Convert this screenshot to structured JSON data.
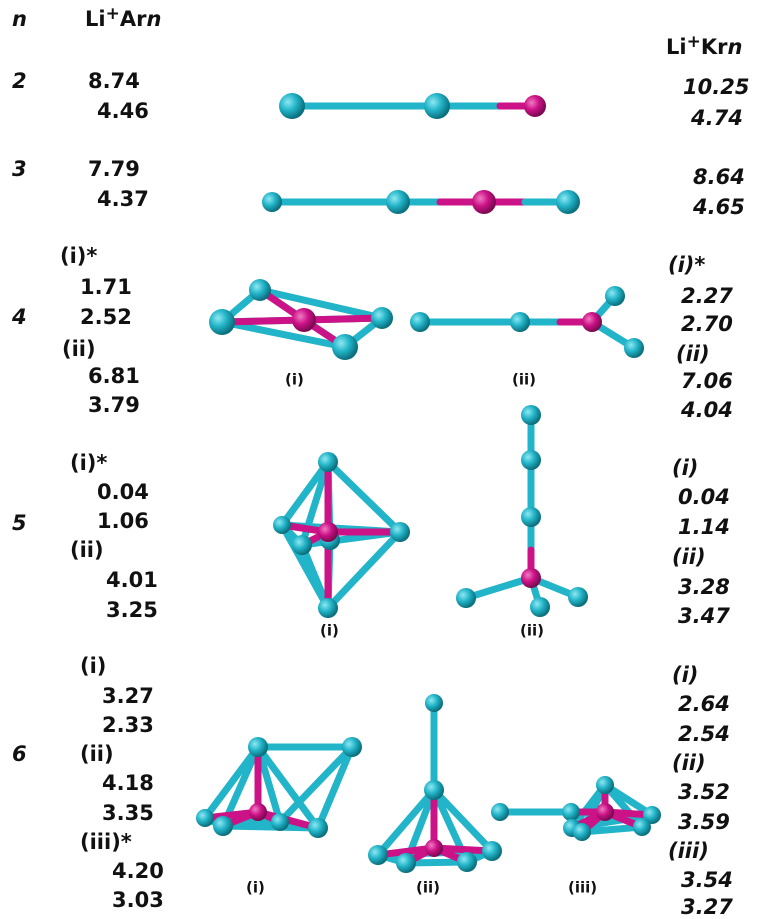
{
  "header": {
    "n": "n",
    "ar": {
      "base": "Li",
      "charge": "+",
      "element": "Ar",
      "n": "n"
    },
    "kr": {
      "base": "Li",
      "charge": "+",
      "element": "Kr",
      "n": "n"
    }
  },
  "rows": [
    {
      "n": "2",
      "ar": [
        {
          "values": [
            "8.74",
            "4.46"
          ]
        }
      ],
      "kr": [
        {
          "values": [
            "10.25",
            "4.74"
          ]
        }
      ],
      "structures": []
    },
    {
      "n": "3",
      "ar": [
        {
          "values": [
            "7.79",
            "4.37"
          ]
        }
      ],
      "kr": [
        {
          "values": [
            "8.64",
            "4.65"
          ]
        }
      ],
      "structures": []
    },
    {
      "n": "4",
      "ar": [
        {
          "label": "(i)*",
          "values": [
            "1.71",
            "2.52"
          ]
        },
        {
          "label": "(ii)",
          "values": [
            "6.81",
            "3.79"
          ]
        }
      ],
      "kr": [
        {
          "label": "(i)*",
          "values": [
            "2.27",
            "2.70"
          ]
        },
        {
          "label": "(ii)",
          "values": [
            "7.06",
            "4.04"
          ]
        }
      ],
      "structures": [
        "(i)",
        "(ii)"
      ]
    },
    {
      "n": "5",
      "ar": [
        {
          "label": "(i)*",
          "values": [
            "0.04",
            "1.06"
          ]
        },
        {
          "label": "(ii)",
          "values": [
            "4.01",
            "3.25"
          ]
        }
      ],
      "kr": [
        {
          "label": "(i)",
          "values": [
            "0.04",
            "1.14"
          ]
        },
        {
          "label": "(ii)",
          "values": [
            "3.28",
            "3.47"
          ]
        }
      ],
      "structures": [
        "(i)",
        "(ii)"
      ]
    },
    {
      "n": "6",
      "ar": [
        {
          "label": "(i)",
          "values": [
            "3.27",
            "2.33"
          ]
        },
        {
          "label": "(ii)",
          "values": [
            "4.18",
            "3.35"
          ]
        },
        {
          "label": "(iii)*",
          "values": [
            "4.20",
            "3.03"
          ]
        }
      ],
      "kr": [
        {
          "label": "(i)",
          "values": [
            "2.64",
            "2.54"
          ]
        },
        {
          "label": "(ii)",
          "values": [
            "3.52",
            "3.59"
          ]
        },
        {
          "label": "(iii)",
          "values": [
            "3.54",
            "3.27"
          ]
        }
      ],
      "structures": [
        "(i)",
        "(ii)",
        "(iii)"
      ]
    }
  ]
}
